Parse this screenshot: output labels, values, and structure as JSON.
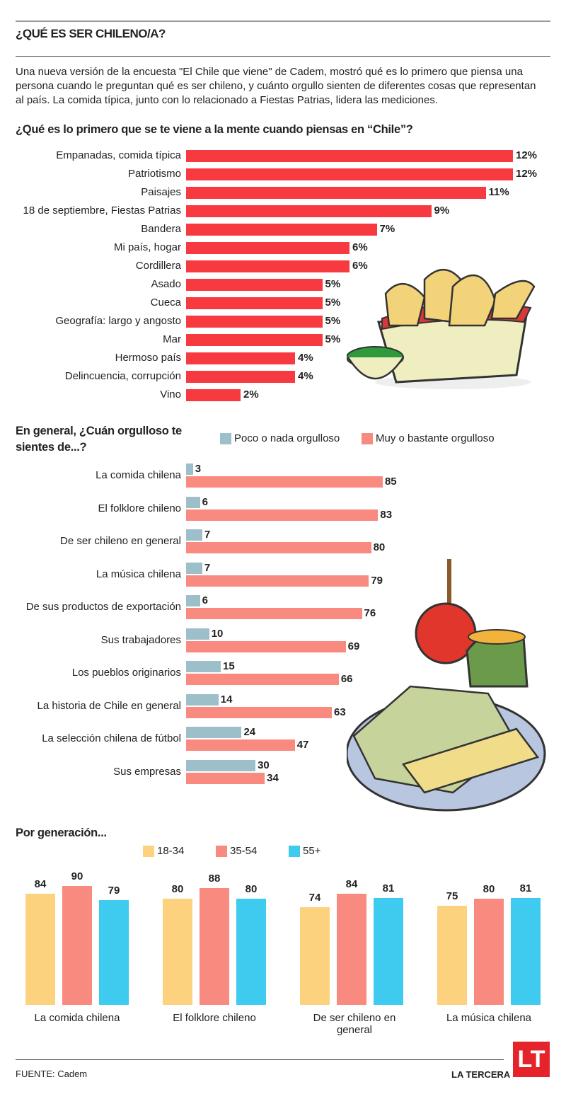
{
  "header": {
    "title": "¿QUÉ ES SER CHILENO/A?",
    "intro": "Una nueva versión de la encuesta \"El Chile que viene\" de Cadem, mostró qué es lo primero que piensa una persona cuando le preguntan qué es ser chileno, y cuánto orgullo sienten de diferentes cosas que representan al país. La comida típica, junto con lo relacionado a Fiestas Patrias, lidera las mediciones."
  },
  "colors": {
    "red": "#f73a3f",
    "gray_blue": "#9dbfc9",
    "salmon": "#f98a7f",
    "yellow": "#fdd27f",
    "cyan": "#3ecbef"
  },
  "chart_data": [
    {
      "type": "bar",
      "orientation": "horizontal",
      "title": "¿Qué es lo primero que se te viene a la mente cuando piensas en “Chile”?",
      "unit": "%",
      "categories": [
        "Empanadas, comida típica",
        "Patriotismo",
        "Paisajes",
        "18 de septiembre, Fiestas Patrias",
        "Bandera",
        "Mi país, hogar",
        "Cordillera",
        "Asado",
        "Cueca",
        "Geografía: largo y angosto",
        "Mar",
        "Hermoso país",
        "Delincuencia, corrupción",
        "Vino"
      ],
      "values": [
        12,
        12,
        11,
        9,
        7,
        6,
        6,
        5,
        5,
        5,
        5,
        4,
        4,
        2
      ],
      "labels": [
        "12%",
        "12%",
        "11%",
        "9%",
        "7%",
        "6%",
        "6%",
        "5%",
        "5%",
        "5%",
        "5%",
        "4%",
        "4%",
        "2%"
      ]
    },
    {
      "type": "bar",
      "orientation": "horizontal",
      "title": "En general, ¿Cuán orgulloso te sientes de...?",
      "categories": [
        "La comida chilena",
        "El folklore chileno",
        "De ser chileno en general",
        "La música chilena",
        "De sus productos de exportación",
        "Sus trabajadores",
        "Los pueblos originarios",
        "La historia de Chile en general",
        "La selección chilena de fútbol",
        "Sus empresas"
      ],
      "series": [
        {
          "name": "Poco o nada orgulloso",
          "values": [
            3,
            6,
            7,
            7,
            6,
            10,
            15,
            14,
            24,
            30
          ]
        },
        {
          "name": "Muy o bastante orgulloso",
          "values": [
            85,
            83,
            80,
            79,
            76,
            69,
            66,
            63,
            47,
            34
          ]
        }
      ]
    },
    {
      "type": "bar",
      "orientation": "vertical",
      "title": "Por generación...",
      "categories": [
        "La comida chilena",
        "El folklore chileno",
        "De ser chileno en general",
        "La música chilena"
      ],
      "series": [
        {
          "name": "18-34",
          "values": [
            84,
            80,
            74,
            75
          ]
        },
        {
          "name": "35-54",
          "values": [
            90,
            88,
            84,
            80
          ]
        },
        {
          "name": "55+",
          "values": [
            79,
            80,
            81,
            81
          ]
        }
      ]
    }
  ],
  "footer": {
    "source": "FUENTE: Cadem",
    "brand": "LA TERCERA",
    "logo": "LT"
  }
}
